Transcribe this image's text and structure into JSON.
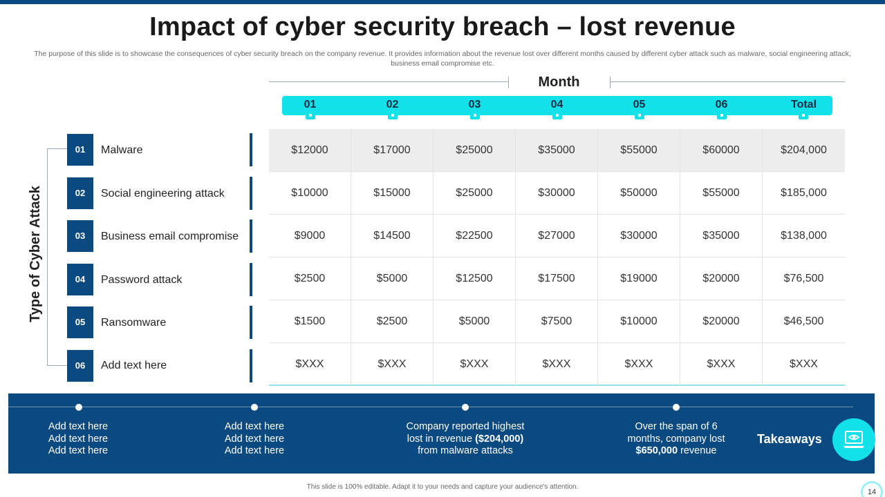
{
  "slide": {
    "title": "Impact of cyber security breach – lost revenue",
    "subtitle": "The purpose of this slide is to showcase the consequences of cyber security breach on the company revenue. It provides information about the revenue lost over different months caused by different cyber attack such as malware, social engineering attack, business email compromise etc.",
    "footer": "This slide is 100% editable. Adapt it to your needs and capture your audience's attention.",
    "page_number": "14"
  },
  "table": {
    "month_label": "Month",
    "axis_label": "Type of Cyber Attack",
    "columns": [
      "01",
      "02",
      "03",
      "04",
      "05",
      "06",
      "Total"
    ],
    "rows": [
      {
        "num": "01",
        "label": "Malware",
        "values": [
          "$12000",
          "$17000",
          "$25000",
          "$35000",
          "$55000",
          "$60000",
          "$204,000"
        ]
      },
      {
        "num": "02",
        "label": "Social engineering attack",
        "values": [
          "$10000",
          "$15000",
          "$25000",
          "$30000",
          "$50000",
          "$55000",
          "$185,000"
        ]
      },
      {
        "num": "03",
        "label": "Business email compromise",
        "values": [
          "$9000",
          "$14500",
          "$22500",
          "$27000",
          "$30000",
          "$35000",
          "$138,000"
        ]
      },
      {
        "num": "04",
        "label": "Password attack",
        "values": [
          "$2500",
          "$5000",
          "$12500",
          "$17500",
          "$19000",
          "$20000",
          "$76,500"
        ]
      },
      {
        "num": "05",
        "label": "Ransomware",
        "values": [
          "$1500",
          "$2500",
          "$5000",
          "$7500",
          "$10000",
          "$20000",
          "$46,500"
        ]
      },
      {
        "num": "06",
        "label": "Add text here",
        "values": [
          "$XXX",
          "$XXX",
          "$XXX",
          "$XXX",
          "$XXX",
          "$XXX",
          "$XXX"
        ]
      }
    ]
  },
  "takeaways": {
    "label": "Takeaways",
    "icon": "laptop-eye-icon",
    "items": [
      {
        "l1": "Add text here",
        "l2": "Add text here",
        "l3": "Add text here"
      },
      {
        "l1": "Add text here",
        "l2": "Add text here",
        "l3": "Add text here"
      },
      {
        "l1": "Company reported highest",
        "l2a": "lost in revenue ",
        "l2b": "($204,000)",
        "l3": "from malware attacks"
      },
      {
        "l1": "Over the span of 6",
        "l2": "months, company lost",
        "l3a": "$650,000",
        "l3b": " revenue"
      }
    ]
  },
  "colors": {
    "navy": "#0b4a80",
    "cyan": "#12e1ea"
  }
}
